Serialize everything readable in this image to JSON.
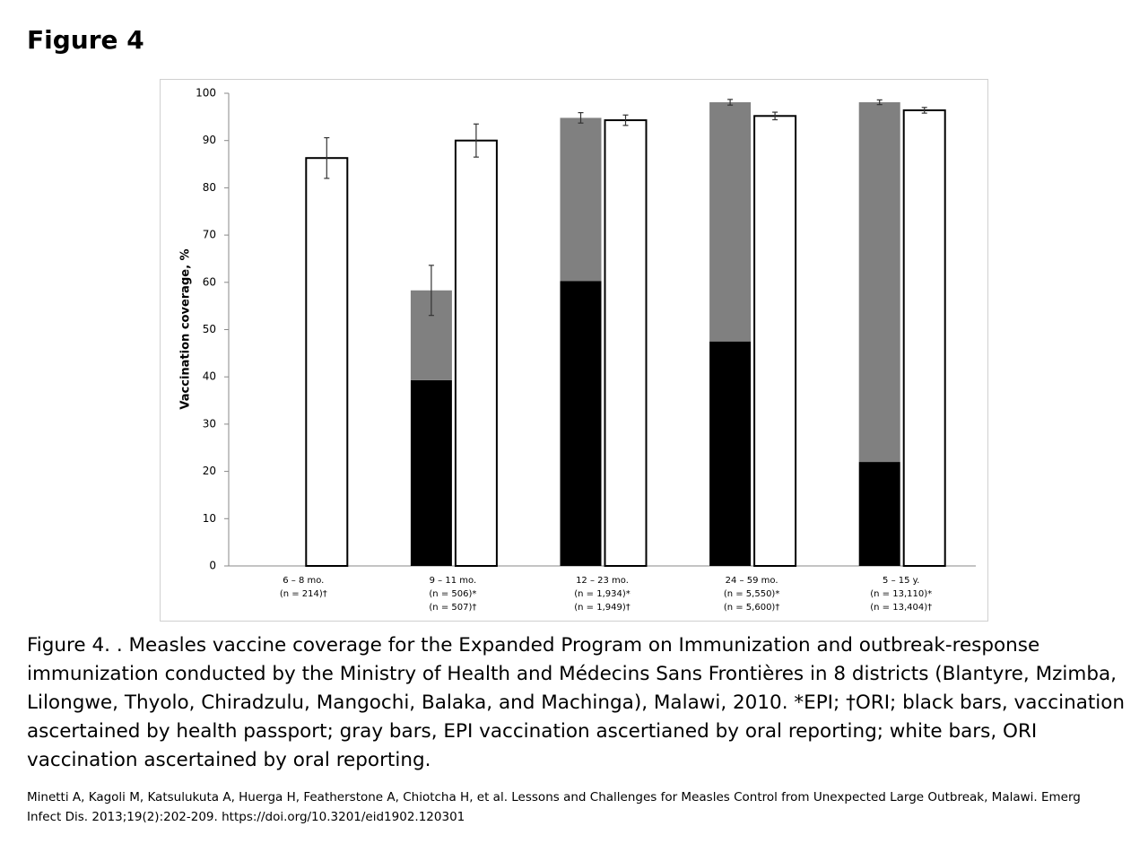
{
  "header": {
    "title": "Figure 4"
  },
  "chart_data": {
    "type": "stacked-bar",
    "y_label": "Vaccination coverage, %",
    "categories": [
      "6 – 8 mo.",
      "9 – 11 mo.",
      "12 – 23 mo.",
      "24 – 59 mo.",
      "5 – 15 y."
    ],
    "category_counts": [
      [
        "(n = 214)†"
      ],
      [
        "(n = 506)*",
        "(n = 507)†"
      ],
      [
        "(n = 1,934)*",
        "(n = 1,949)†"
      ],
      [
        "(n = 5,550)*",
        "(n = 5,600)†"
      ],
      [
        "(n = 13,110)*",
        "(n = 13,404)†"
      ]
    ],
    "series": [
      {
        "color": "#000000",
        "stack": 0,
        "values": [
          null,
          39.3,
          60.3,
          47.5,
          22
        ]
      },
      {
        "color": "#808080",
        "stack": 0,
        "values": [
          null,
          19,
          34.5,
          50.6,
          76.1
        ],
        "errors": [
          null,
          5.3,
          1.1,
          0.6,
          0.5
        ]
      },
      {
        "color": "#ffffff",
        "stack": 1,
        "values": [
          86.3,
          90,
          94.3,
          95.2,
          96.4
        ],
        "errors": [
          4.3,
          3.5,
          1.1,
          0.8,
          0.6
        ]
      }
    ],
    "ylim": [
      0,
      100
    ],
    "yticks": [
      0,
      10,
      20,
      30,
      40,
      50,
      60,
      70,
      80,
      90,
      100
    ],
    "grid": false
  },
  "caption": "Figure 4. . Measles vaccine coverage for the Expanded Program on Immunization and outbreak-response immunization conducted by the Ministry of Health and Médecins Sans Frontières in 8 districts (Blantyre, Mzimba, Lilongwe, Thyolo, Chiradzulu, Mangochi, Balaka, and Machinga), Malawi, 2010. *EPI; †ORI; black bars, vaccination ascertained by health passport; gray bars, EPI vaccination ascertianed by oral reporting; white bars, ORI vaccination ascertained by oral reporting.",
  "citation": "Minetti A, Kagoli M, Katsulukuta A, Huerga H, Featherstone A, Chiotcha H, et al. Lessons and Challenges for Measles Control from Unexpected Large Outbreak, Malawi. Emerg Infect Dis. 2013;19(2):202-209. https://doi.org/10.3201/eid1902.120301"
}
